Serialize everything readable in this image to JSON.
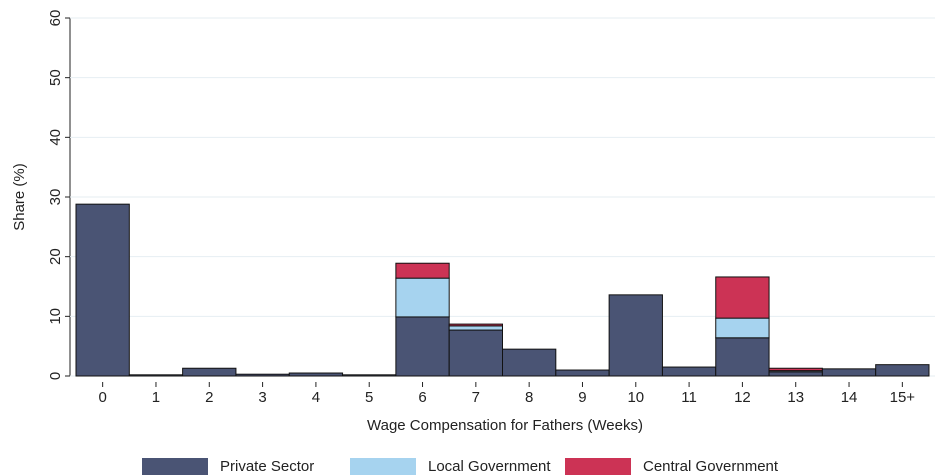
{
  "chart_data": {
    "type": "stacked_bar",
    "xlabel": "Wage Compensation for Fathers (Weeks)",
    "ylabel": "Share (%)",
    "categories": [
      "0",
      "1",
      "2",
      "3",
      "4",
      "5",
      "6",
      "7",
      "8",
      "9",
      "10",
      "11",
      "12",
      "13",
      "14",
      "15+"
    ],
    "series": [
      {
        "name": "Private Sector",
        "color": "#4a5474",
        "values": [
          28.8,
          0.2,
          1.3,
          0.3,
          0.5,
          0.2,
          9.9,
          7.7,
          4.5,
          1.0,
          13.6,
          1.5,
          6.4,
          0.7,
          1.2,
          1.9
        ]
      },
      {
        "name": "Local Government",
        "color": "#a6d3ef",
        "values": [
          0,
          0,
          0,
          0,
          0,
          0,
          6.5,
          0.7,
          0,
          0,
          0,
          0,
          3.3,
          0.2,
          0,
          0
        ]
      },
      {
        "name": "Central Government",
        "color": "#cc3355",
        "values": [
          0,
          0,
          0,
          0,
          0,
          0,
          2.5,
          0.3,
          0,
          0,
          0,
          0,
          6.9,
          0.4,
          0,
          0
        ]
      }
    ],
    "ylim": [
      0,
      60
    ],
    "yticks": [
      0,
      10,
      20,
      30,
      40,
      50,
      60
    ],
    "grid": true
  }
}
